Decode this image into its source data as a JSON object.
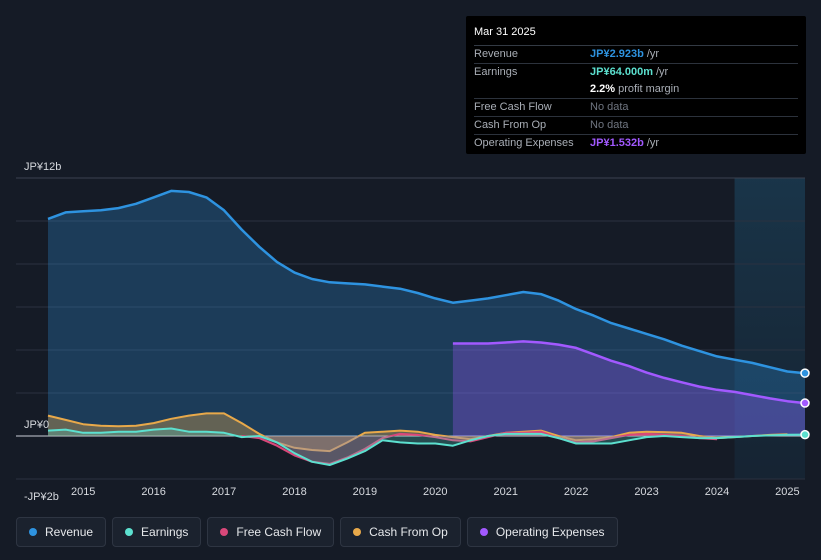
{
  "chart_data": {
    "type": "area",
    "title": "",
    "currency": "JPY",
    "y_unit": "JP¥ billions",
    "ylim": [
      -2,
      12
    ],
    "y_tick_labels": [
      {
        "value": 12,
        "label": "JP¥12b"
      },
      {
        "value": 0,
        "label": "JP¥0"
      },
      {
        "value": -2,
        "label": "-JP¥2b"
      }
    ],
    "x_ticks": [
      "2015",
      "2016",
      "2017",
      "2018",
      "2019",
      "2020",
      "2021",
      "2022",
      "2023",
      "2024",
      "2025"
    ],
    "xlim": [
      2014.5,
      2025.25
    ],
    "forecast_start": 2024.25,
    "series": [
      {
        "name": "Revenue",
        "color": "#2e93e0",
        "fill": true,
        "points": [
          [
            2014.5,
            10.1
          ],
          [
            2014.75,
            10.4
          ],
          [
            2015,
            10.45
          ],
          [
            2015.25,
            10.5
          ],
          [
            2015.5,
            10.6
          ],
          [
            2015.75,
            10.8
          ],
          [
            2016,
            11.1
          ],
          [
            2016.25,
            11.4
          ],
          [
            2016.5,
            11.35
          ],
          [
            2016.75,
            11.1
          ],
          [
            2017,
            10.5
          ],
          [
            2017.25,
            9.6
          ],
          [
            2017.5,
            8.8
          ],
          [
            2017.75,
            8.1
          ],
          [
            2018,
            7.6
          ],
          [
            2018.25,
            7.3
          ],
          [
            2018.5,
            7.15
          ],
          [
            2018.75,
            7.1
          ],
          [
            2019,
            7.05
          ],
          [
            2019.25,
            6.95
          ],
          [
            2019.5,
            6.85
          ],
          [
            2019.75,
            6.65
          ],
          [
            2020,
            6.4
          ],
          [
            2020.25,
            6.2
          ],
          [
            2020.5,
            6.3
          ],
          [
            2020.75,
            6.4
          ],
          [
            2021,
            6.55
          ],
          [
            2021.25,
            6.7
          ],
          [
            2021.5,
            6.6
          ],
          [
            2021.75,
            6.3
          ],
          [
            2022,
            5.9
          ],
          [
            2022.25,
            5.6
          ],
          [
            2022.5,
            5.25
          ],
          [
            2022.75,
            5.0
          ],
          [
            2023,
            4.75
          ],
          [
            2023.25,
            4.5
          ],
          [
            2023.5,
            4.2
          ],
          [
            2023.75,
            3.95
          ],
          [
            2024,
            3.7
          ],
          [
            2024.25,
            3.55
          ],
          [
            2024.5,
            3.4
          ],
          [
            2024.75,
            3.2
          ],
          [
            2025,
            3.0
          ],
          [
            2025.25,
            2.923
          ]
        ]
      },
      {
        "name": "Operating Expenses",
        "color": "#a259ff",
        "fill": true,
        "points": [
          [
            2020.25,
            4.3
          ],
          [
            2020.5,
            4.3
          ],
          [
            2020.75,
            4.3
          ],
          [
            2021,
            4.35
          ],
          [
            2021.25,
            4.4
          ],
          [
            2021.5,
            4.35
          ],
          [
            2021.75,
            4.25
          ],
          [
            2022,
            4.1
          ],
          [
            2022.25,
            3.8
          ],
          [
            2022.5,
            3.5
          ],
          [
            2022.75,
            3.25
          ],
          [
            2023,
            2.95
          ],
          [
            2023.25,
            2.7
          ],
          [
            2023.5,
            2.5
          ],
          [
            2023.75,
            2.3
          ],
          [
            2024,
            2.15
          ],
          [
            2024.25,
            2.05
          ],
          [
            2024.5,
            1.9
          ],
          [
            2024.75,
            1.75
          ],
          [
            2025,
            1.62
          ],
          [
            2025.25,
            1.532
          ]
        ]
      },
      {
        "name": "Cash From Op",
        "color": "#e8a94a",
        "fill": true,
        "points": [
          [
            2014.5,
            0.95
          ],
          [
            2014.75,
            0.75
          ],
          [
            2015,
            0.55
          ],
          [
            2015.25,
            0.48
          ],
          [
            2015.5,
            0.45
          ],
          [
            2015.75,
            0.48
          ],
          [
            2016,
            0.6
          ],
          [
            2016.25,
            0.8
          ],
          [
            2016.5,
            0.95
          ],
          [
            2016.75,
            1.05
          ],
          [
            2017,
            1.05
          ],
          [
            2017.25,
            0.6
          ],
          [
            2017.5,
            0.1
          ],
          [
            2017.75,
            -0.3
          ],
          [
            2018,
            -0.55
          ],
          [
            2018.25,
            -0.65
          ],
          [
            2018.5,
            -0.7
          ],
          [
            2018.75,
            -0.3
          ],
          [
            2019,
            0.15
          ],
          [
            2019.25,
            0.2
          ],
          [
            2019.5,
            0.25
          ],
          [
            2019.75,
            0.2
          ],
          [
            2020,
            0.05
          ],
          [
            2020.25,
            -0.05
          ],
          [
            2020.5,
            -0.15
          ],
          [
            2020.75,
            0.0
          ],
          [
            2021,
            0.15
          ],
          [
            2021.25,
            0.2
          ],
          [
            2021.5,
            0.25
          ],
          [
            2021.75,
            0.0
          ],
          [
            2022,
            -0.2
          ],
          [
            2022.25,
            -0.15
          ],
          [
            2022.5,
            -0.05
          ],
          [
            2022.75,
            0.15
          ],
          [
            2023,
            0.2
          ],
          [
            2023.25,
            0.18
          ],
          [
            2023.5,
            0.15
          ],
          [
            2023.75,
            0.0
          ],
          [
            2024,
            -0.1
          ],
          [
            2024.25,
            -0.05
          ],
          [
            2024.5,
            0.0
          ],
          [
            2024.75,
            0.05
          ],
          [
            2025,
            0.08
          ]
        ]
      },
      {
        "name": "Free Cash Flow",
        "color": "#d9487a",
        "fill": true,
        "points": [
          [
            2017.25,
            0.0
          ],
          [
            2017.5,
            -0.1
          ],
          [
            2017.75,
            -0.45
          ],
          [
            2018,
            -0.9
          ],
          [
            2018.25,
            -1.2
          ],
          [
            2018.5,
            -1.3
          ],
          [
            2018.75,
            -1.0
          ],
          [
            2019,
            -0.6
          ],
          [
            2019.25,
            -0.1
          ],
          [
            2019.5,
            0.1
          ],
          [
            2019.75,
            0.05
          ],
          [
            2020,
            -0.05
          ],
          [
            2020.25,
            -0.2
          ],
          [
            2020.5,
            -0.25
          ],
          [
            2020.75,
            -0.05
          ],
          [
            2021,
            0.15
          ],
          [
            2021.25,
            0.15
          ],
          [
            2021.5,
            0.2
          ],
          [
            2021.75,
            -0.1
          ],
          [
            2022,
            -0.3
          ],
          [
            2022.25,
            -0.25
          ],
          [
            2022.5,
            -0.1
          ],
          [
            2022.75,
            0.05
          ],
          [
            2023,
            0.1
          ],
          [
            2023.25,
            0.05
          ],
          [
            2023.5,
            0.0
          ],
          [
            2023.75,
            -0.1
          ],
          [
            2024,
            -0.15
          ]
        ]
      },
      {
        "name": "Earnings",
        "color": "#5ce0cf",
        "fill": true,
        "points": [
          [
            2014.5,
            0.25
          ],
          [
            2014.75,
            0.3
          ],
          [
            2015,
            0.15
          ],
          [
            2015.25,
            0.15
          ],
          [
            2015.5,
            0.2
          ],
          [
            2015.75,
            0.2
          ],
          [
            2016,
            0.3
          ],
          [
            2016.25,
            0.35
          ],
          [
            2016.5,
            0.2
          ],
          [
            2016.75,
            0.2
          ],
          [
            2017,
            0.15
          ],
          [
            2017.25,
            -0.05
          ],
          [
            2017.5,
            0.0
          ],
          [
            2017.75,
            -0.3
          ],
          [
            2018,
            -0.8
          ],
          [
            2018.25,
            -1.2
          ],
          [
            2018.5,
            -1.35
          ],
          [
            2018.75,
            -1.05
          ],
          [
            2019,
            -0.7
          ],
          [
            2019.25,
            -0.2
          ],
          [
            2019.5,
            -0.3
          ],
          [
            2019.75,
            -0.35
          ],
          [
            2020,
            -0.35
          ],
          [
            2020.25,
            -0.45
          ],
          [
            2020.5,
            -0.2
          ],
          [
            2020.75,
            0.0
          ],
          [
            2021,
            0.1
          ],
          [
            2021.25,
            0.1
          ],
          [
            2021.5,
            0.1
          ],
          [
            2021.75,
            -0.1
          ],
          [
            2022,
            -0.35
          ],
          [
            2022.25,
            -0.35
          ],
          [
            2022.5,
            -0.35
          ],
          [
            2022.75,
            -0.2
          ],
          [
            2023,
            -0.05
          ],
          [
            2023.25,
            0.0
          ],
          [
            2023.5,
            -0.05
          ],
          [
            2023.75,
            -0.1
          ],
          [
            2024,
            -0.1
          ],
          [
            2024.25,
            -0.05
          ],
          [
            2024.5,
            0.0
          ],
          [
            2024.75,
            0.03
          ],
          [
            2025,
            0.06
          ],
          [
            2025.25,
            0.064
          ]
        ]
      }
    ],
    "end_markers": [
      "Revenue",
      "Operating Expenses",
      "Earnings"
    ]
  },
  "tooltip": {
    "date": "Mar 31 2025",
    "rows": [
      {
        "label": "Revenue",
        "value": "JP¥2.923b",
        "suffix": "/yr",
        "color": "#2e93e0"
      },
      {
        "label": "Earnings",
        "value": "JP¥64.000m",
        "suffix": "/yr",
        "color": "#5ce0cf"
      },
      {
        "label": "",
        "value": "2.2%",
        "suffix": "profit margin",
        "color": "#ffffff"
      },
      {
        "label": "Free Cash Flow",
        "value": "",
        "suffix": "No data",
        "color": "#6f7580"
      },
      {
        "label": "Cash From Op",
        "value": "",
        "suffix": "No data",
        "color": "#6f7580"
      },
      {
        "label": "Operating Expenses",
        "value": "JP¥1.532b",
        "suffix": "/yr",
        "color": "#a259ff"
      }
    ]
  },
  "legend": [
    {
      "label": "Revenue",
      "color": "#2e93e0"
    },
    {
      "label": "Earnings",
      "color": "#5ce0cf"
    },
    {
      "label": "Free Cash Flow",
      "color": "#d9487a"
    },
    {
      "label": "Cash From Op",
      "color": "#e8a94a"
    },
    {
      "label": "Operating Expenses",
      "color": "#a259ff"
    }
  ]
}
